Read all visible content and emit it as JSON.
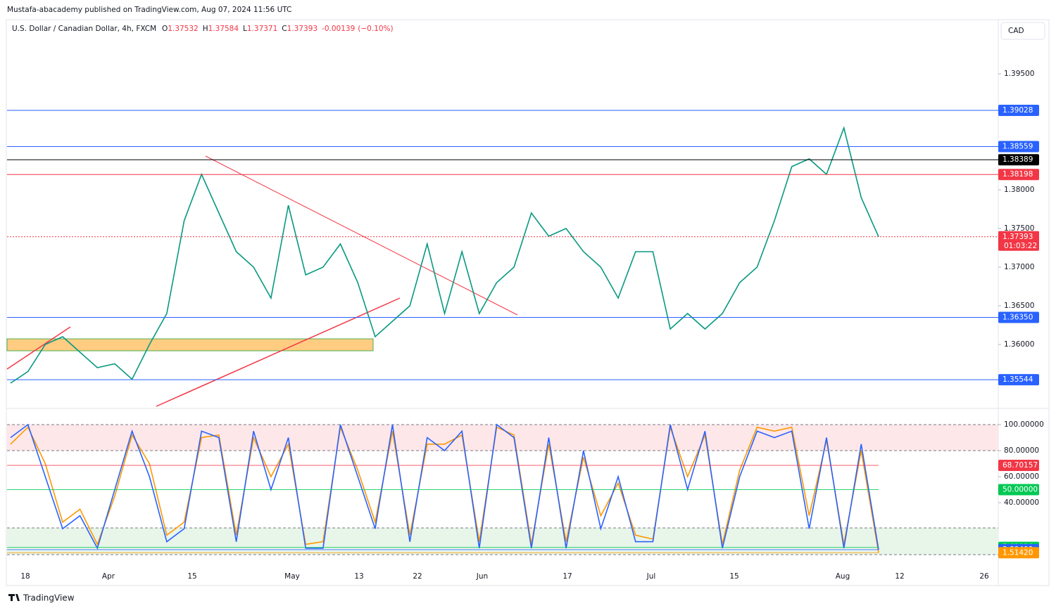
{
  "header": {
    "publisher": "Mustafa-abacademy published on TradingView.com, Aug 07, 2024 11:56 UTC",
    "symbol": "U.S. Dollar / Canadian Dollar, 4h, FXCM",
    "ohlc": [
      {
        "key": "O",
        "value": 1.37532
      },
      {
        "key": "H",
        "value": 1.37584
      },
      {
        "key": "L",
        "value": 1.37371
      },
      {
        "key": "C",
        "value": 1.37393
      }
    ],
    "change": -0.00139,
    "change_pct": "(−0.10%)",
    "currency": "CAD"
  },
  "chart_data": [
    {
      "type": "line",
      "series": [
        {
          "color": "#089981",
          "values": [
            1.355,
            1.3565,
            1.36,
            1.361,
            1.359,
            1.357,
            1.3575,
            1.3555,
            1.36,
            1.364,
            1.376,
            1.382,
            1.377,
            1.372,
            1.37,
            1.366,
            1.378,
            1.369,
            1.37,
            1.373,
            1.368,
            1.361,
            1.363,
            1.365,
            1.373,
            1.364,
            1.372,
            1.364,
            1.368,
            1.37,
            1.377,
            1.374,
            1.375,
            1.372,
            1.37,
            1.366,
            1.372,
            1.372,
            1.362,
            1.364,
            1.362,
            1.364,
            1.368,
            1.37,
            1.376,
            1.383,
            1.384,
            1.382,
            1.388,
            1.379,
            1.37393
          ]
        }
      ],
      "ylim": [
        1.35182,
        1.40273
      ],
      "yticks": [
        {
          "value": 1.395,
          "label": "1.39500"
        },
        {
          "value": 1.38,
          "label": "1.38000"
        },
        {
          "value": 1.375,
          "label": "1.37500"
        },
        {
          "value": 1.37,
          "label": "1.37000"
        },
        {
          "value": 1.365,
          "label": "1.36500"
        },
        {
          "value": 1.36,
          "label": "1.36000"
        }
      ],
      "levels": [
        {
          "value": 1.39028,
          "color": "#2962ff"
        },
        {
          "value": 1.38559,
          "color": "#2962ff"
        },
        {
          "value": 1.38389,
          "color": "#000000"
        },
        {
          "value": 1.38198,
          "color": "#f23645"
        },
        {
          "value": 1.37393,
          "color": "#f23645",
          "countdown": "01:03:22"
        },
        {
          "value": 1.3635,
          "label": "1.36350",
          "color": "#2962ff"
        },
        {
          "value": 1.35544,
          "color": "#2962ff"
        }
      ]
    },
    {
      "type": "line",
      "series": [
        {
          "color": "#ff9800",
          "values": [
            85,
            98,
            70,
            25,
            35,
            8,
            45,
            92,
            70,
            15,
            25,
            90,
            92,
            15,
            90,
            60,
            85,
            8,
            10,
            98,
            65,
            25,
            95,
            15,
            85,
            85,
            92,
            10,
            98,
            92,
            8,
            85,
            10,
            75,
            30,
            55,
            15,
            12,
            98,
            60,
            92,
            8,
            65,
            98,
            95,
            98,
            30,
            88,
            8,
            80,
            1.5142
          ]
        },
        {
          "color": "#2962ff",
          "values": [
            90,
            100,
            60,
            20,
            30,
            5,
            50,
            95,
            60,
            10,
            20,
            95,
            90,
            10,
            95,
            50,
            90,
            5,
            5,
            100,
            60,
            20,
            100,
            10,
            90,
            80,
            95,
            5,
            100,
            90,
            5,
            90,
            5,
            80,
            20,
            60,
            10,
            10,
            100,
            50,
            95,
            5,
            60,
            95,
            90,
            95,
            20,
            90,
            5,
            85,
            3.89409
          ]
        }
      ],
      "ylim": [
        -5.9,
        111.9
      ],
      "yticks": [
        {
          "value": 100,
          "label": "100.00000"
        },
        {
          "value": 80,
          "label": "80.00000"
        },
        {
          "value": 60,
          "label": "60.00000"
        },
        {
          "value": 40,
          "label": "40.00000"
        }
      ],
      "levels": [
        {
          "value": 68.70157,
          "color": "#f23645"
        },
        {
          "value": 50,
          "label": "50.00000",
          "color": "#00c853"
        },
        {
          "value": 5.62936,
          "color": "#00c853"
        },
        {
          "value": 3.89409,
          "color": "#2962ff"
        },
        {
          "value": 1.5142,
          "label": "1.51420",
          "color": "#ff9800"
        }
      ],
      "x_labels": [
        "18",
        "Apr",
        "15",
        "May",
        "13",
        "22",
        "Jun",
        "17",
        "Jul",
        "15",
        "Aug",
        "12",
        "26"
      ]
    }
  ],
  "footer": {
    "brand": "TradingView"
  }
}
